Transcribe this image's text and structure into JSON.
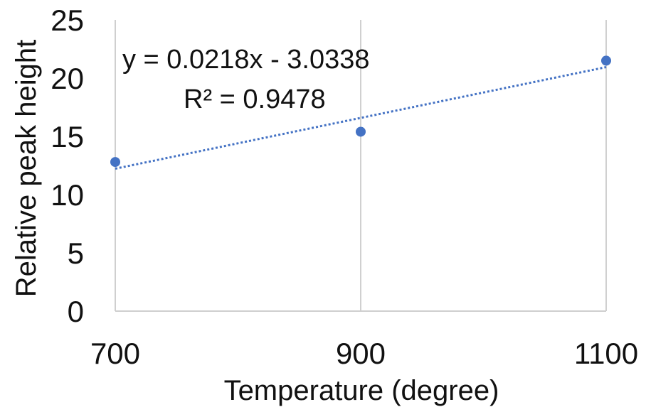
{
  "chart_data": {
    "type": "scatter",
    "title": "",
    "xlabel": "Temperature (degree)",
    "ylabel": "Relative peak height",
    "xlim": [
      700,
      1100
    ],
    "ylim": [
      0,
      25
    ],
    "x_ticks": [
      "700",
      "900",
      "1100"
    ],
    "y_ticks": [
      "0",
      "5",
      "10",
      "15",
      "20",
      "25"
    ],
    "grid": "vertical",
    "legend": "none",
    "series": [
      {
        "x": [
          700,
          900,
          1100
        ],
        "y": [
          12.8,
          15.4,
          21.5
        ],
        "color": "#4472C4"
      }
    ],
    "trendline": {
      "type": "linear",
      "slope": 0.0218,
      "intercept": -3.0338,
      "style": "dotted",
      "color": "#4472C4",
      "equation_label": "y = 0.0218x - 3.0338",
      "r2_label": "R² = 0.9478"
    }
  }
}
